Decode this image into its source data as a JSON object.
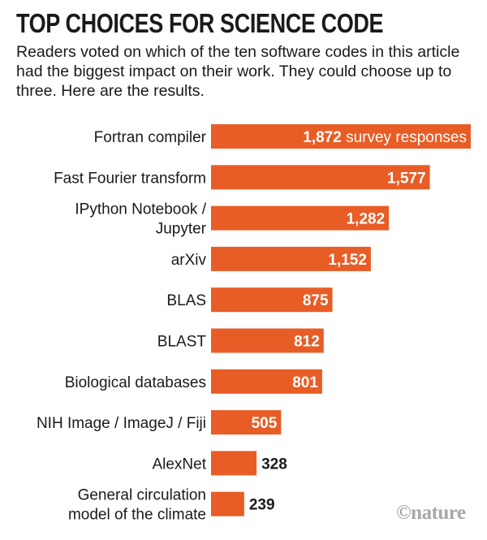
{
  "chart_data": {
    "type": "bar",
    "orientation": "horizontal",
    "title": "TOP CHOICES FOR SCIENCE CODE",
    "subtitle": "Readers voted on which of the ten software codes in this article had the biggest impact on their work. They could choose up to three. Here are the results.",
    "categories": [
      [
        "Fortran compiler"
      ],
      [
        "Fast Fourier transform"
      ],
      [
        "IPython Notebook /",
        "Jupyter"
      ],
      [
        "arXiv"
      ],
      [
        "BLAS"
      ],
      [
        "BLAST"
      ],
      [
        "Biological databases"
      ],
      [
        "NIH Image / ImageJ / Fiji"
      ],
      [
        "AlexNet"
      ],
      [
        "General circulation",
        "model of the climate"
      ]
    ],
    "values": [
      1872,
      1577,
      1282,
      1152,
      875,
      812,
      801,
      505,
      328,
      239
    ],
    "value_labels": [
      "1,872",
      "1,577",
      "1,282",
      "1,152",
      "875",
      "812",
      "801",
      "505",
      "328",
      "239"
    ],
    "first_label_suffix": " survey responses",
    "xlim": [
      0,
      1872
    ],
    "bar_color": "#E85D26"
  },
  "credit": "©nature"
}
